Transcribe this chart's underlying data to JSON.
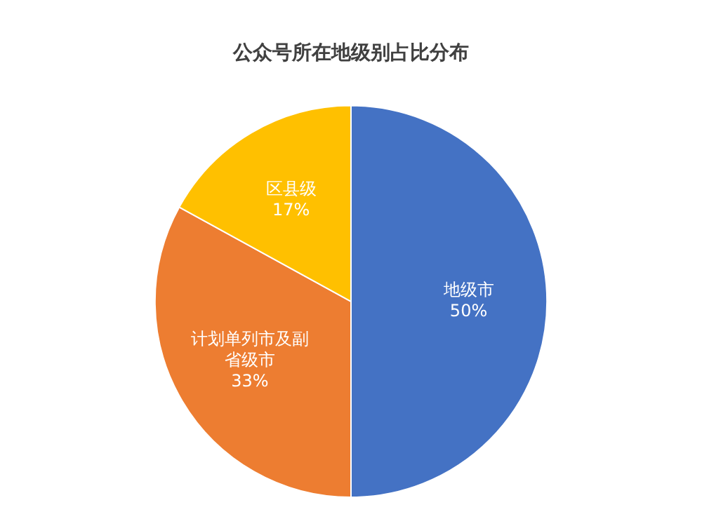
{
  "chart_data": {
    "type": "pie",
    "title": "公众号所在地级别占比分布",
    "categories": [
      "地级市",
      "计划单列市及副省级市",
      "区县级"
    ],
    "values": [
      50,
      33,
      17
    ],
    "value_labels": [
      "50%",
      "33%",
      "17%"
    ],
    "colors": [
      "#4472c4",
      "#ed7d31",
      "#ffc000"
    ],
    "legend": false
  }
}
